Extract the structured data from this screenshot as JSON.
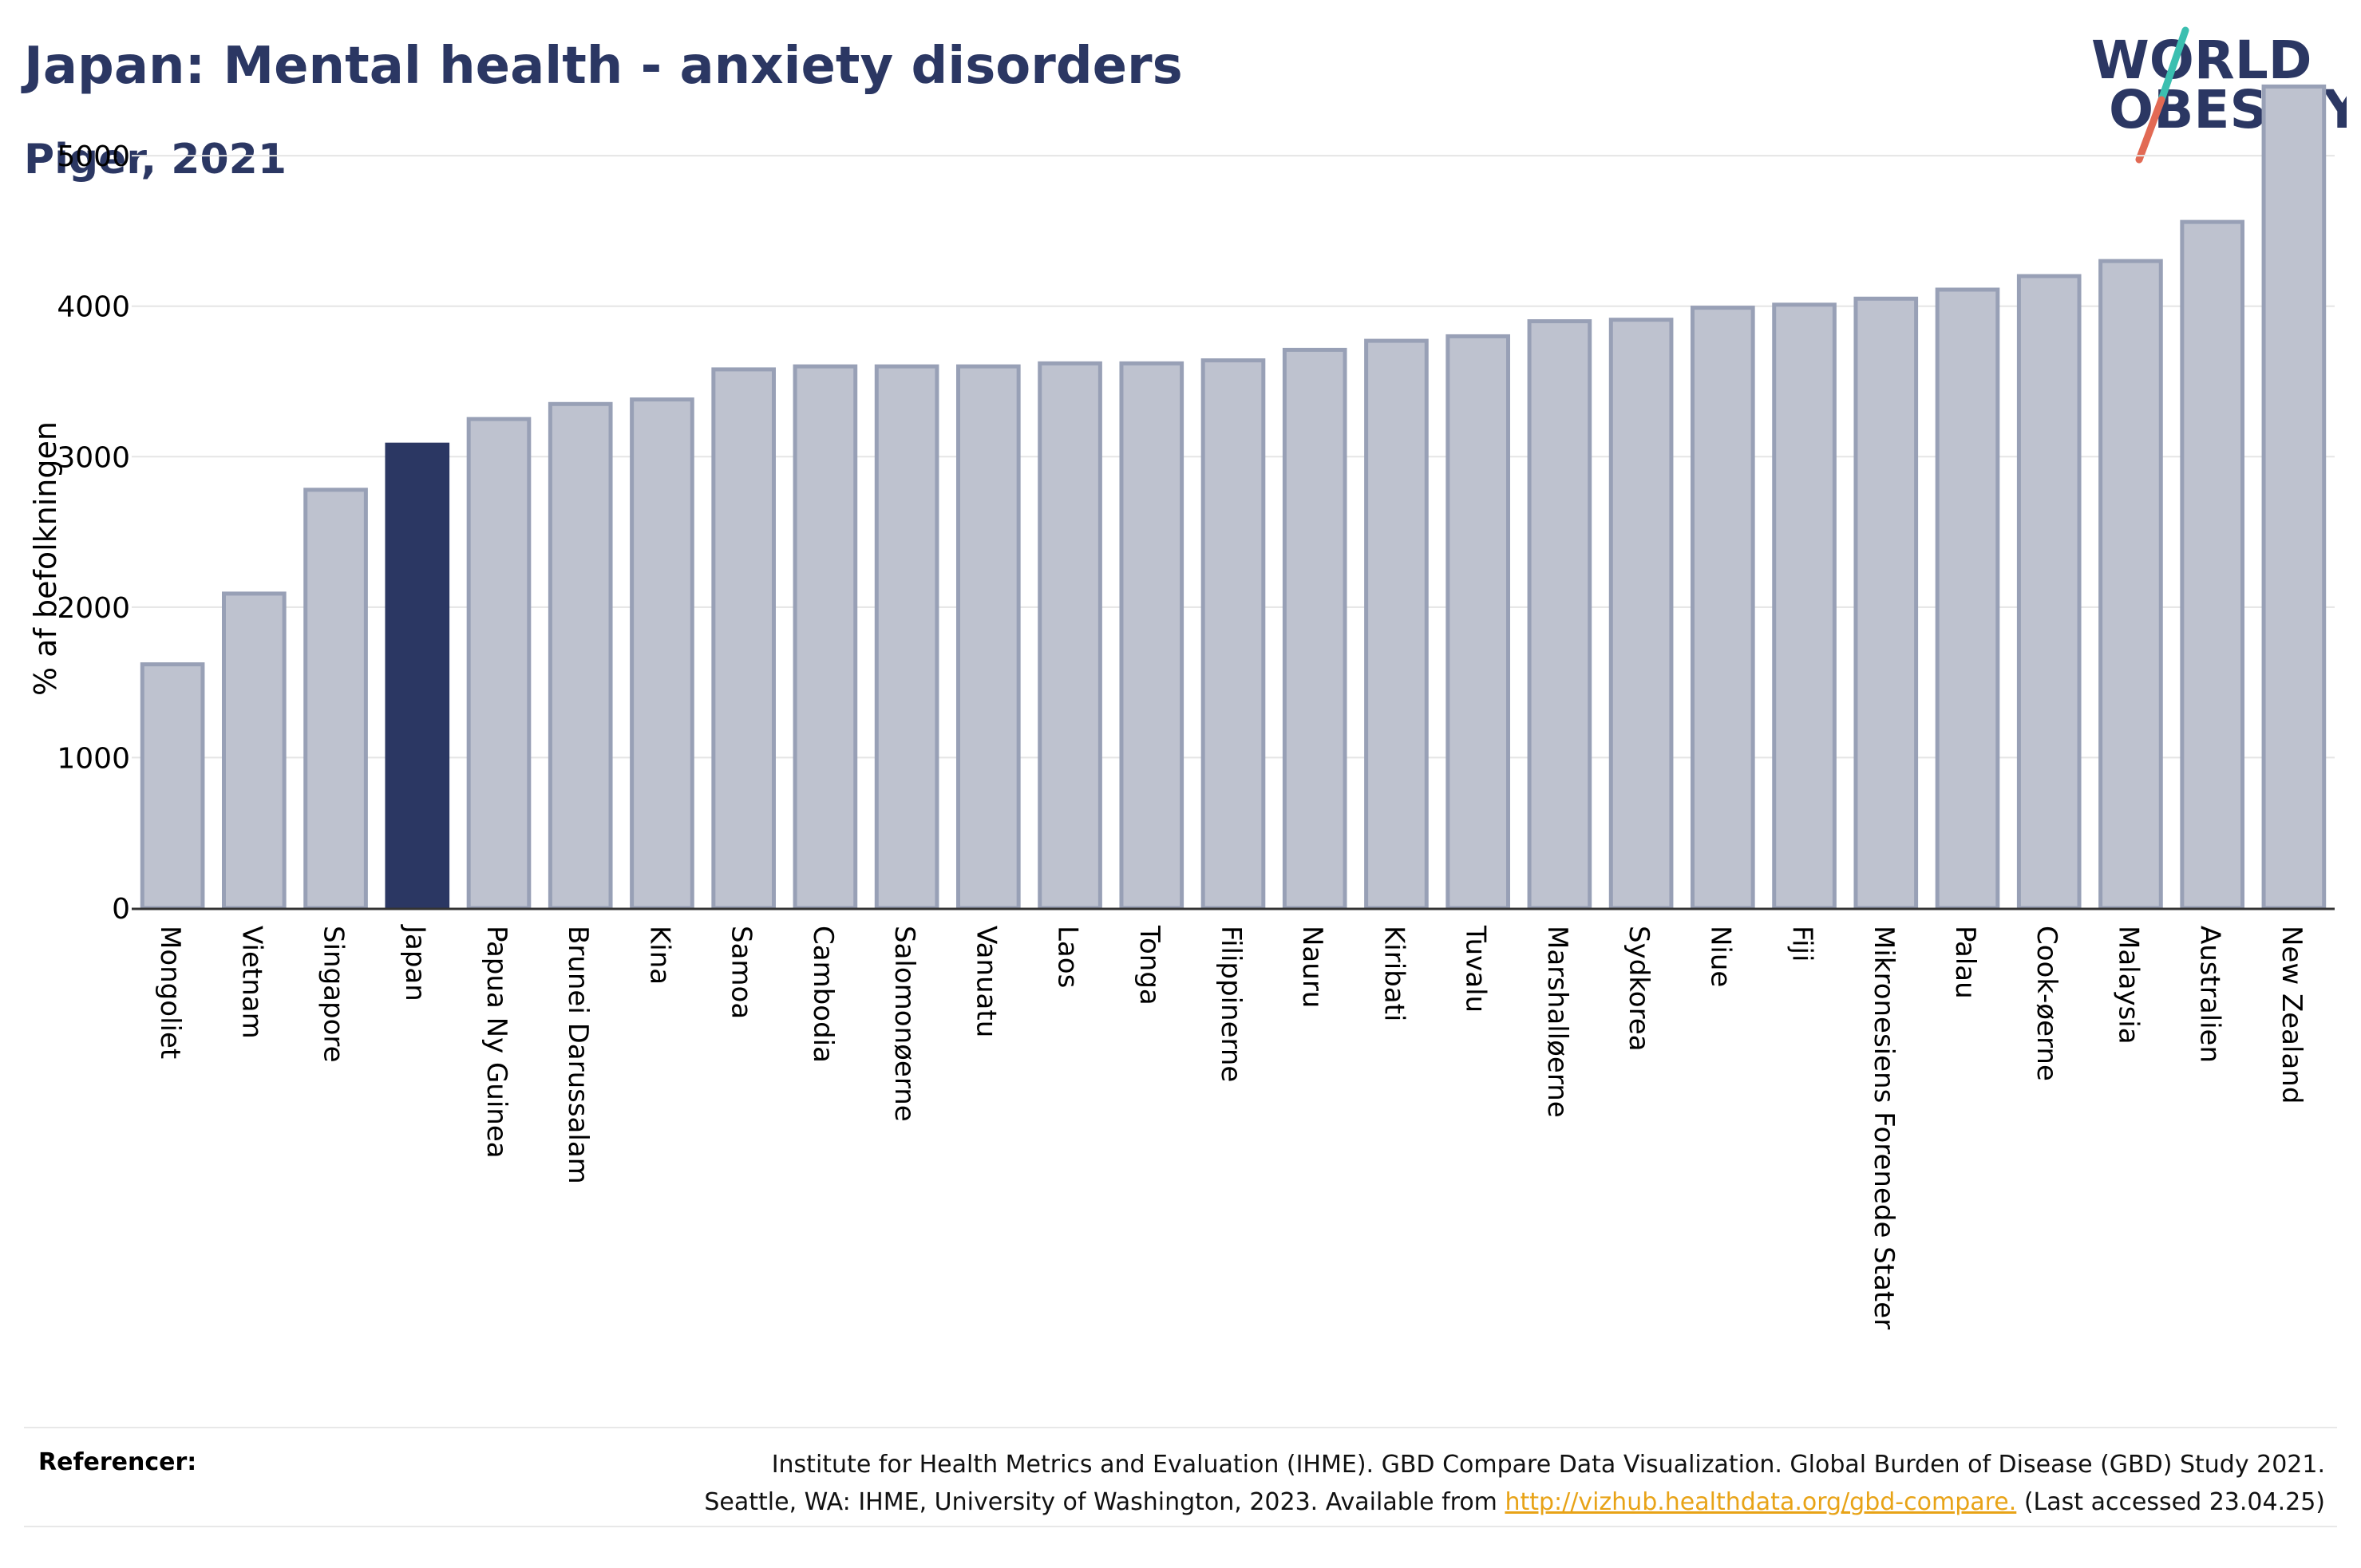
{
  "header": {
    "title": "Japan: Mental health - anxiety disorders",
    "subtitle": "Piger, 2021"
  },
  "logo": {
    "line1": "WORLD",
    "line2": "OBESITY",
    "text_color": "#2b3763",
    "slash_top_color": "#3bbfb0",
    "slash_bottom_color": "#e26a54"
  },
  "colors": {
    "bar": "#bec2cf",
    "bar_edge": "#98a0b6",
    "highlight": "#2b3763",
    "grid": "#e5e5e5",
    "axis": "#333333"
  },
  "chart_data": {
    "type": "bar",
    "title": "Japan: Mental health - anxiety disorders",
    "subtitle": "Piger, 2021",
    "ylabel": "% af befolkningen",
    "xlabel": "",
    "ylim": [
      0,
      5600
    ],
    "yticks": [
      0,
      1000,
      2000,
      3000,
      4000,
      5000
    ],
    "grid": true,
    "highlight": "Japan",
    "categories": [
      "Mongoliet",
      "Vietnam",
      "Singapore",
      "Japan",
      "Papua Ny Guinea",
      "Brunei Darussalam",
      "Kina",
      "Samoa",
      "Cambodia",
      "Salomonøerne",
      "Vanuatu",
      "Laos",
      "Tonga",
      "Filippinerne",
      "Nauru",
      "Kiribati",
      "Tuvalu",
      "Marshalløerne",
      "Sydkorea",
      "Niue",
      "Fiji",
      "Mikronesiens Forenede Stater",
      "Palau",
      "Cook-øerne",
      "Malaysia",
      "Australien",
      "New Zealand"
    ],
    "values": [
      1620,
      2090,
      2780,
      3080,
      3250,
      3350,
      3380,
      3580,
      3600,
      3600,
      3600,
      3620,
      3620,
      3640,
      3710,
      3770,
      3800,
      3900,
      3910,
      3990,
      4010,
      4050,
      4110,
      4200,
      4300,
      4560,
      5460
    ]
  },
  "references": {
    "label": "Referencer:",
    "line1": "Institute for Health Metrics and Evaluation (IHME). GBD Compare Data Visualization. Global Burden of Disease (GBD) Study 2021.",
    "line2_pre": "Seattle, WA: IHME, University of Washington, 2023. Available from ",
    "link": "http://vizhub.healthdata.org/gbd-compare.",
    "line2_post": " (Last accessed 23.04.25)"
  }
}
